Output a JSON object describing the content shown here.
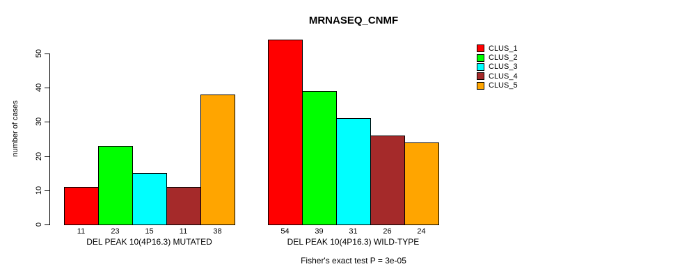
{
  "title": "MRNASEQ_CNMF",
  "chart_data": {
    "type": "bar",
    "title": "MRNASEQ_CNMF",
    "ylabel": "number of cases",
    "xlabel": "",
    "ylim": [
      0,
      55
    ],
    "yticks": [
      0,
      10,
      20,
      30,
      40,
      50
    ],
    "grid": false,
    "legend_position": "top-right",
    "bar_value_labels": true,
    "series": [
      {
        "name": "CLUS_1",
        "color": "#FF0000"
      },
      {
        "name": "CLUS_2",
        "color": "#00FF00"
      },
      {
        "name": "CLUS_3",
        "color": "#00FFFF"
      },
      {
        "name": "CLUS_4",
        "color": "#A52A2A"
      },
      {
        "name": "CLUS_5",
        "color": "#FFA500"
      }
    ],
    "groups": [
      {
        "label": "DEL PEAK 10(4P16.3) MUTATED",
        "values": [
          11,
          23,
          15,
          11,
          38
        ]
      },
      {
        "label": "DEL PEAK 10(4P16.3) WILD-TYPE",
        "values": [
          54,
          39,
          31,
          26,
          24
        ]
      }
    ],
    "annotation": "Fisher's exact test P = 3e-05"
  },
  "colors": {
    "axis": "#000000",
    "text": "#000000",
    "background": "#FFFFFF"
  }
}
